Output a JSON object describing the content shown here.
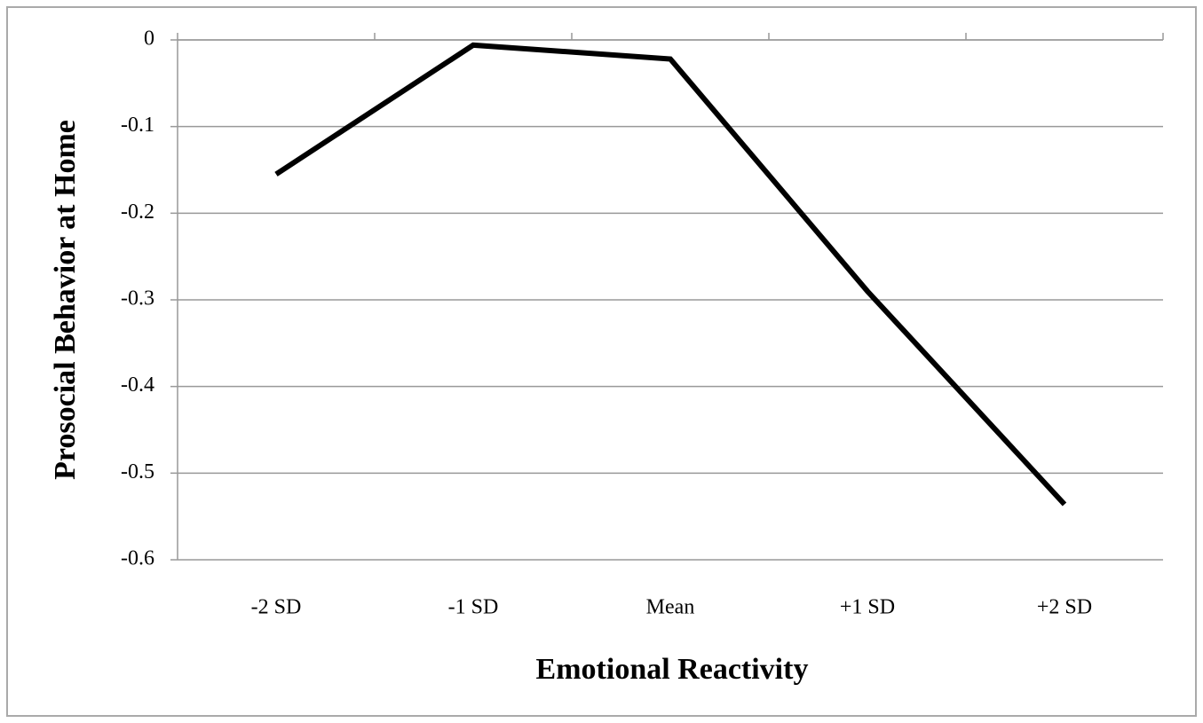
{
  "chart_data": {
    "type": "line",
    "categories": [
      "-2 SD",
      "-1 SD",
      "Mean",
      "+1 SD",
      "+2 SD"
    ],
    "series": [
      {
        "name": "Prosocial Behavior at Home",
        "color": "#000000",
        "values": [
          -0.155,
          -0.006,
          -0.022,
          -0.29,
          -0.536
        ]
      }
    ],
    "xlabel": "Emotional Reactivity",
    "ylabel": "Prosocial Behavior at Home",
    "ylim": [
      -0.6,
      0
    ],
    "yticks": [
      0,
      -0.1,
      -0.2,
      -0.3,
      -0.4,
      -0.5,
      -0.6
    ],
    "grid": true
  }
}
